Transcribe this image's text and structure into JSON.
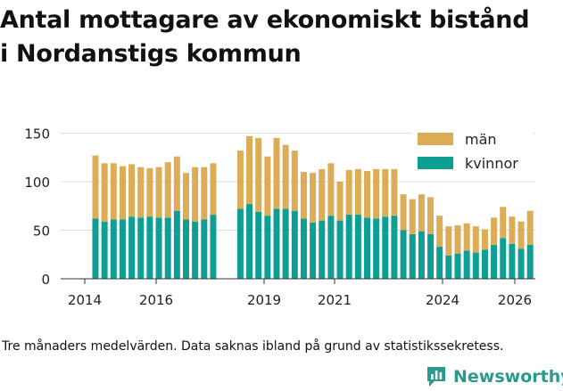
{
  "title": "Antal mottagare av ekonomiskt bistånd\ni Nordanstigs kommun",
  "footnote": "Tre månaders medelvärden. Data saknas ibland på grund av statistikssekretess.",
  "brand": "Newsworthy",
  "colors": {
    "man": "#dcac56",
    "kvinnor": "#0e9e93",
    "grid": "#dddddd",
    "axis": "#333333",
    "brand": "#2a9a8d"
  },
  "chart_data": {
    "type": "bar",
    "stacked": true,
    "title": "Antal mottagare av ekonomiskt bistånd i Nordanstigs kommun",
    "xlabel": "",
    "ylabel": "",
    "ylim": [
      0,
      160
    ],
    "yticks": [
      0,
      50,
      100,
      150
    ],
    "xticks": [
      "2014",
      "2016",
      "2019",
      "2021",
      "2024",
      "2026"
    ],
    "legend_position": "top-right",
    "series": [
      {
        "name": "kvinnor",
        "color": "#0e9e93",
        "values": [
          62,
          59,
          61,
          61,
          64,
          63,
          64,
          63,
          63,
          70,
          61,
          59,
          61,
          66,
          null,
          null,
          72,
          77,
          69,
          65,
          72,
          72,
          70,
          62,
          58,
          60,
          65,
          60,
          66,
          66,
          63,
          62,
          64,
          65,
          50,
          46,
          49,
          46,
          33,
          24,
          26,
          29,
          27,
          30,
          35,
          42,
          36,
          31,
          35
        ]
      },
      {
        "name": "män",
        "color": "#dcac56",
        "values": [
          65,
          60,
          58,
          55,
          54,
          52,
          50,
          52,
          57,
          56,
          48,
          56,
          54,
          53,
          null,
          null,
          60,
          70,
          76,
          61,
          73,
          66,
          62,
          48,
          51,
          53,
          54,
          40,
          46,
          47,
          48,
          51,
          49,
          48,
          37,
          36,
          38,
          38,
          32,
          30,
          29,
          28,
          27,
          21,
          28,
          32,
          28,
          28,
          35
        ]
      }
    ]
  }
}
